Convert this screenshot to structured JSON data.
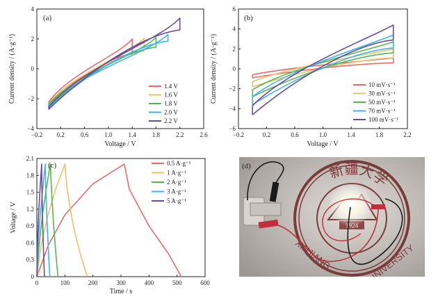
{
  "chart_data": [
    {
      "type": "line",
      "panel_label": "(a)",
      "xlabel": "Voltage / V",
      "ylabel": "Current density / (A·g⁻¹)",
      "xlim": [
        -0.2,
        2.6
      ],
      "ylim": [
        -4,
        4
      ],
      "xticks": [
        -0.2,
        0.2,
        0.6,
        1.0,
        1.4,
        1.8,
        2.2,
        2.6
      ],
      "xtick_labels": [
        "−0.2",
        "0.2",
        "0.6",
        "1.0",
        "1.4",
        "1.8",
        "2.2",
        "2.6"
      ],
      "yticks": [
        -4,
        -2,
        0,
        2,
        4
      ],
      "ytick_labels": [
        "−4",
        "−2",
        "0",
        "2",
        "4"
      ],
      "legend_position": "bottom-right",
      "series": [
        {
          "name": "1.4 V",
          "color": "#ea6a6a",
          "x_start": 0.0,
          "x_end": 1.4,
          "top_start": -2.2,
          "top_end": 2.0,
          "bottom_start": -2.35,
          "bottom_end": 1.0
        },
        {
          "name": "1.6 V",
          "color": "#e8c26a",
          "x_start": 0.0,
          "x_end": 1.6,
          "top_start": -2.3,
          "top_end": 2.05,
          "bottom_start": -2.45,
          "bottom_end": 1.2
        },
        {
          "name": "1.8 V",
          "color": "#55b84e",
          "x_start": 0.0,
          "x_end": 1.8,
          "top_start": -2.35,
          "top_end": 2.1,
          "bottom_start": -2.5,
          "bottom_end": 1.45
        },
        {
          "name": "2.0 V",
          "color": "#3fb4e6",
          "x_start": 0.0,
          "x_end": 2.0,
          "top_start": -2.45,
          "top_end": 2.3,
          "bottom_start": -2.6,
          "bottom_end": 1.85
        },
        {
          "name": "2.2 V",
          "color": "#6a4c9c",
          "x_start": 0.0,
          "x_end": 2.2,
          "top_start": -2.55,
          "top_end": 3.4,
          "bottom_start": -2.7,
          "bottom_end": 2.6
        }
      ]
    },
    {
      "type": "line",
      "panel_label": "(b)",
      "xlabel": "Voltage / V",
      "ylabel": "Current density / (A·g⁻¹)",
      "xlim": [
        -0.2,
        2.2
      ],
      "ylim": [
        -6,
        6
      ],
      "xticks": [
        -0.2,
        0.2,
        0.6,
        1.0,
        1.4,
        1.8,
        2.2
      ],
      "xtick_labels": [
        "−0.2",
        "0.2",
        "0.6",
        "1.0",
        "1.4",
        "1.8",
        "2.2"
      ],
      "yticks": [
        -6,
        -4,
        -2,
        0,
        2,
        4,
        6
      ],
      "ytick_labels": [
        "−6",
        "−4",
        "−2",
        "0",
        "2",
        "4",
        "6"
      ],
      "legend_position": "bottom-right",
      "series": [
        {
          "name": "10 mV·s⁻¹",
          "color": "#ea6a6a",
          "x_start": 0.0,
          "x_end": 2.0,
          "top_start": -0.6,
          "top_end": 1.1,
          "bottom_start": -0.9,
          "bottom_end": 0.6
        },
        {
          "name": "30 mV·s⁻¹",
          "color": "#e8c26a",
          "x_start": 0.0,
          "x_end": 2.0,
          "top_start": -1.3,
          "top_end": 2.0,
          "bottom_start": -1.8,
          "bottom_end": 1.1
        },
        {
          "name": "50 mV·s⁻¹",
          "color": "#55b84e",
          "x_start": 0.0,
          "x_end": 2.0,
          "top_start": -2.1,
          "top_end": 2.7,
          "bottom_start": -2.8,
          "bottom_end": 1.6
        },
        {
          "name": "70 mV·s⁻¹",
          "color": "#3fb4e6",
          "x_start": 0.0,
          "x_end": 2.0,
          "top_start": -2.8,
          "top_end": 3.4,
          "bottom_start": -3.6,
          "bottom_end": 2.1
        },
        {
          "name": "100 mV·s⁻¹",
          "color": "#6a4c9c",
          "x_start": 0.0,
          "x_end": 2.0,
          "top_start": -3.7,
          "top_end": 4.4,
          "bottom_start": -4.6,
          "bottom_end": 2.9
        }
      ]
    },
    {
      "type": "line",
      "panel_label": "(c)",
      "xlabel": "Time / s",
      "ylabel": "Voltage / V",
      "xlim": [
        0,
        600
      ],
      "ylim": [
        0,
        2.1
      ],
      "xticks": [
        0,
        100,
        200,
        300,
        400,
        500,
        600
      ],
      "xtick_labels": [
        "0",
        "100",
        "200",
        "300",
        "400",
        "500",
        "600"
      ],
      "yticks": [
        0,
        0.3,
        0.6,
        0.9,
        1.2,
        1.5,
        1.8,
        2.1
      ],
      "ytick_labels": [
        "0",
        "0.3",
        "0.6",
        "0.9",
        "1.2",
        "1.5",
        "1.8",
        "2.1"
      ],
      "legend_position": "top-right",
      "series": [
        {
          "name": "0.5 A·g⁻¹",
          "color": "#ea6a6a",
          "x": [
            0,
            40,
            100,
            200,
            312,
            330,
            400,
            470,
            515
          ],
          "y": [
            0.0,
            0.55,
            1.1,
            1.65,
            2.0,
            1.55,
            0.9,
            0.4,
            0.0
          ]
        },
        {
          "name": "1 A·g⁻¹",
          "color": "#e8c26a",
          "x": [
            0,
            15,
            40,
            70,
            100,
            108,
            130,
            155,
            180
          ],
          "y": [
            0.0,
            0.55,
            1.1,
            1.6,
            2.0,
            1.55,
            0.9,
            0.4,
            0.0
          ]
        },
        {
          "name": "2 A·g⁻¹",
          "color": "#55b84e",
          "x": [
            0,
            8,
            20,
            35,
            48,
            52,
            60,
            68,
            75
          ],
          "y": [
            0.0,
            0.55,
            1.1,
            1.6,
            2.0,
            1.55,
            0.9,
            0.4,
            0.0
          ]
        },
        {
          "name": "3 A·g⁻¹",
          "color": "#3fb4e6",
          "x": [
            0,
            4,
            12,
            22,
            30,
            32,
            37,
            42,
            46
          ],
          "y": [
            0.0,
            0.55,
            1.1,
            1.6,
            2.0,
            1.55,
            0.9,
            0.4,
            0.0
          ]
        },
        {
          "name": "5 A·g⁻¹",
          "color": "#6a4c9c",
          "x": [
            0,
            2,
            6,
            12,
            17,
            18,
            21,
            24,
            27
          ],
          "y": [
            0.0,
            0.55,
            1.1,
            1.6,
            2.0,
            1.55,
            0.9,
            0.4,
            0.0
          ]
        }
      ]
    }
  ],
  "photo": {
    "panel_label": "(d)",
    "logo_text_top": "新疆大学",
    "logo_text_left": "XINJIANG",
    "logo_text_right": "UNIVERSITY",
    "logo_year": "1924"
  }
}
